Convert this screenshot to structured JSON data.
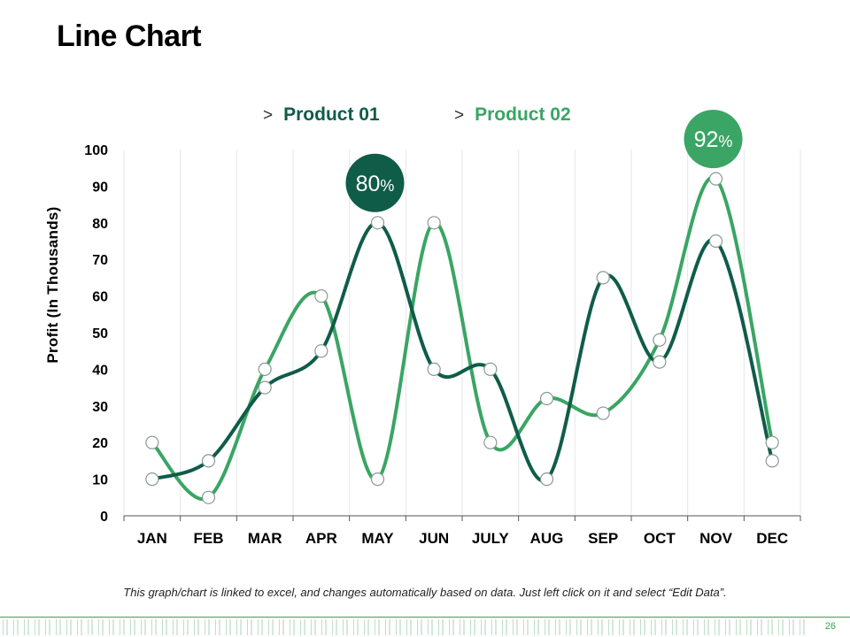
{
  "slide": {
    "title": "Line Chart",
    "footnote": "This graph/chart is linked to excel, and changes automatically based on data. Just left click on it and select “Edit Data”.",
    "page_number": "26"
  },
  "legend_marker": ">",
  "colors": {
    "product_01": "#0f5c49",
    "product_02": "#3aa564",
    "grid": "#e6e6e6",
    "axis": "#555555",
    "footer": "#3aa05a"
  },
  "chart_data": {
    "type": "line",
    "title": "",
    "xlabel": "",
    "ylabel": "Profit (In Thousands)",
    "ylim": [
      0,
      100
    ],
    "yticks": [
      0,
      10,
      20,
      30,
      40,
      50,
      60,
      70,
      80,
      90,
      100
    ],
    "categories": [
      "JAN",
      "FEB",
      "MAR",
      "APR",
      "MAY",
      "JUN",
      "JULY",
      "AUG",
      "SEP",
      "OCT",
      "NOV",
      "DEC"
    ],
    "series": [
      {
        "name": "Product 01",
        "values": [
          10,
          15,
          35,
          45,
          80,
          40,
          40,
          10,
          65,
          42,
          75,
          15
        ]
      },
      {
        "name": "Product 02",
        "values": [
          20,
          5,
          40,
          60,
          10,
          80,
          20,
          32,
          28,
          48,
          92,
          20
        ]
      }
    ],
    "annotations": [
      {
        "series": 0,
        "category": "MAY",
        "value": "80",
        "unit": "%"
      },
      {
        "series": 1,
        "category": "NOV",
        "value": "92",
        "unit": "%"
      }
    ],
    "grid": true,
    "legend_position": "top-center"
  }
}
